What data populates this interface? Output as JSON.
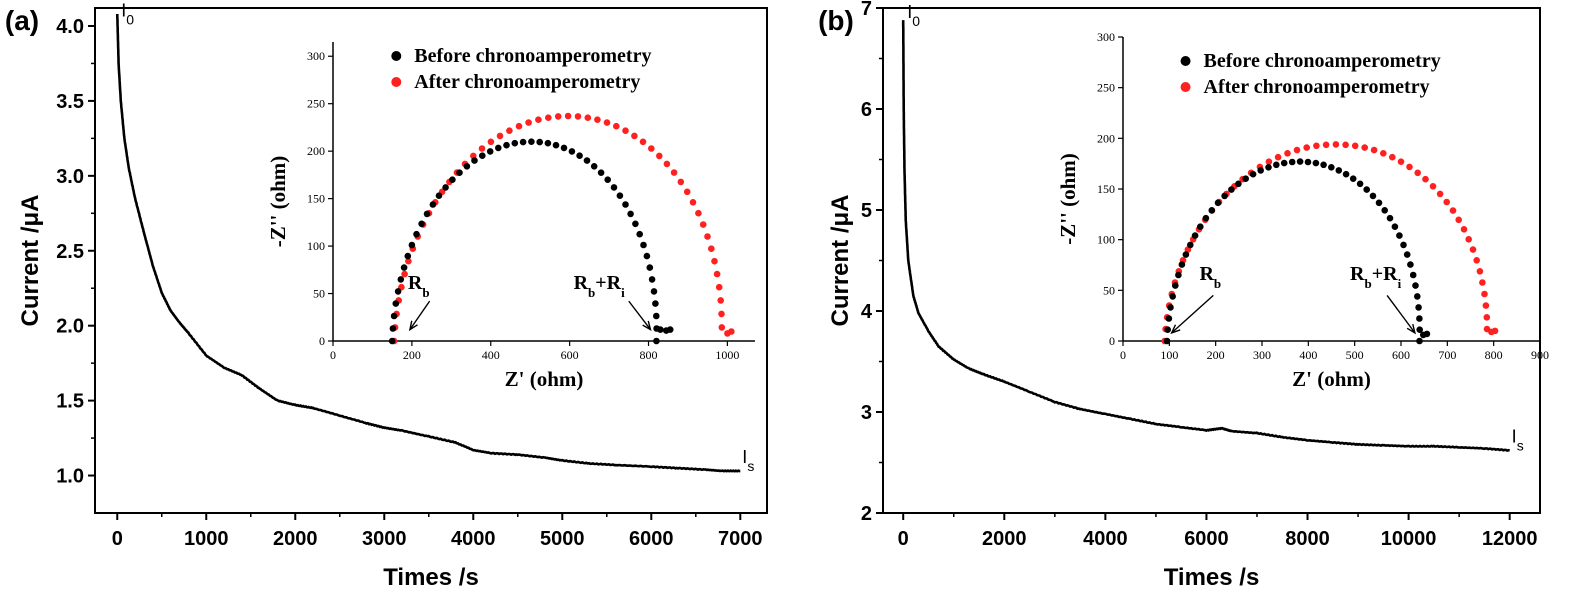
{
  "chart_data": [
    {
      "panel": "(a)",
      "type": "line",
      "xlabel": "Times /s",
      "ylabel": "Current /μA",
      "xlim": [
        -250,
        7300
      ],
      "ylim": [
        0.75,
        4.12
      ],
      "xticks": [
        0,
        1000,
        2000,
        3000,
        4000,
        5000,
        6000,
        7000
      ],
      "yticks": [
        1.0,
        1.5,
        2.0,
        2.5,
        3.0,
        3.5,
        4.0
      ],
      "annotations": [
        {
          "base": "I",
          "sub": "0",
          "x": 0,
          "y": 4.05
        },
        {
          "base": "I",
          "sub": "s",
          "x": 7000,
          "y": 1.03
        }
      ],
      "series": [
        {
          "x": [
            0,
            15,
            40,
            80,
            130,
            200,
            300,
            400,
            500,
            600,
            700,
            800,
            1000,
            1200,
            1400,
            1600,
            1800,
            2000,
            2200,
            2500,
            2800,
            3000,
            3200,
            3500,
            3800,
            4000,
            4200,
            4500,
            4800,
            5000,
            5300,
            5600,
            6000,
            6300,
            6600,
            6800,
            7000
          ],
          "y": [
            4.08,
            3.75,
            3.5,
            3.25,
            3.05,
            2.85,
            2.62,
            2.4,
            2.22,
            2.1,
            2.02,
            1.95,
            1.8,
            1.72,
            1.67,
            1.58,
            1.5,
            1.47,
            1.45,
            1.4,
            1.35,
            1.32,
            1.3,
            1.26,
            1.22,
            1.17,
            1.15,
            1.14,
            1.12,
            1.1,
            1.08,
            1.07,
            1.06,
            1.05,
            1.04,
            1.03,
            1.03
          ]
        }
      ],
      "inset": {
        "xlabel": "Z' (ohm)",
        "ylabel": "-Z'' (ohm)",
        "xlim": [
          0,
          1070
        ],
        "ylim": [
          0,
          315
        ],
        "xticks": [
          0,
          200,
          400,
          600,
          800,
          1000
        ],
        "yticks": [
          0,
          50,
          100,
          150,
          200,
          250,
          300
        ],
        "legend": [
          "Before chronoamperometry",
          "After chronoamperometry"
        ],
        "legend_position": "top-right",
        "colors": [
          "#000000",
          "#ff2020"
        ],
        "before": {
          "start": 150,
          "end": 820,
          "peak": 210,
          "tail_x": [
            830,
            845,
            855
          ],
          "tail_y": [
            12,
            11,
            12
          ]
        },
        "after": {
          "start": 155,
          "end": 985,
          "peak": 237,
          "tail_x": [
            1000,
            1010
          ],
          "tail_y": [
            8,
            10
          ]
        },
        "annotations": [
          {
            "base": "R",
            "sub": "b",
            "plus": "",
            "sub2": "",
            "tx": 190,
            "ty": 55,
            "ax1": 245,
            "ay1": 42,
            "ax2": 195,
            "ay2": 12
          },
          {
            "base": "R",
            "sub": "b",
            "plus": "+R",
            "sub2": "i",
            "tx": 610,
            "ty": 55,
            "ax1": 750,
            "ay1": 42,
            "ax2": 805,
            "ay2": 12
          }
        ]
      }
    },
    {
      "panel": "(b)",
      "type": "line",
      "xlabel": "Times /s",
      "ylabel": "Current /μA",
      "xlim": [
        -400,
        12600
      ],
      "ylim": [
        2.0,
        7.0
      ],
      "xticks": [
        0,
        2000,
        4000,
        6000,
        8000,
        10000,
        12000
      ],
      "yticks": [
        2,
        3,
        4,
        5,
        6,
        7
      ],
      "annotations": [
        {
          "base": "I",
          "sub": "0",
          "x": 0,
          "y": 6.88
        },
        {
          "base": "I",
          "sub": "s",
          "x": 12000,
          "y": 2.62
        }
      ],
      "series": [
        {
          "x": [
            0,
            10,
            25,
            50,
            100,
            200,
            300,
            500,
            700,
            1000,
            1300,
            1600,
            2000,
            2500,
            3000,
            3500,
            4000,
            4500,
            5000,
            5500,
            6000,
            6300,
            6500,
            7000,
            7500,
            8000,
            8500,
            9000,
            9500,
            10000,
            10500,
            11000,
            11500,
            12000
          ],
          "y": [
            6.88,
            6.0,
            5.4,
            4.9,
            4.5,
            4.15,
            3.98,
            3.8,
            3.65,
            3.52,
            3.43,
            3.37,
            3.3,
            3.2,
            3.1,
            3.03,
            2.98,
            2.93,
            2.88,
            2.85,
            2.82,
            2.84,
            2.81,
            2.79,
            2.75,
            2.72,
            2.7,
            2.68,
            2.67,
            2.66,
            2.66,
            2.65,
            2.64,
            2.62
          ]
        }
      ],
      "inset": {
        "xlabel": "Z' (ohm)",
        "ylabel": "-Z'' (ohm)",
        "xlim": [
          0,
          900
        ],
        "ylim": [
          0,
          300
        ],
        "xticks": [
          0,
          100,
          200,
          300,
          400,
          500,
          600,
          700,
          800,
          900
        ],
        "yticks": [
          0,
          50,
          100,
          150,
          200,
          250,
          300
        ],
        "legend": [
          "Before chronoamperometry",
          "After chronoamperometry"
        ],
        "legend_position": "top-right",
        "colors": [
          "#000000",
          "#ff2020"
        ],
        "before": {
          "start": 95,
          "end": 640,
          "peak": 177,
          "tail_x": [
            648,
            656
          ],
          "tail_y": [
            6,
            7
          ]
        },
        "after": {
          "start": 90,
          "end": 785,
          "peak": 194,
          "tail_x": [
            795,
            803
          ],
          "tail_y": [
            9,
            10
          ]
        },
        "annotations": [
          {
            "base": "R",
            "sub": "b",
            "plus": "",
            "sub2": "",
            "tx": 165,
            "ty": 60,
            "ax1": 195,
            "ay1": 45,
            "ax2": 105,
            "ay2": 8
          },
          {
            "base": "R",
            "sub": "b",
            "plus": "+R",
            "sub2": "i",
            "tx": 490,
            "ty": 60,
            "ax1": 570,
            "ay1": 45,
            "ax2": 630,
            "ay2": 8
          }
        ]
      }
    }
  ]
}
